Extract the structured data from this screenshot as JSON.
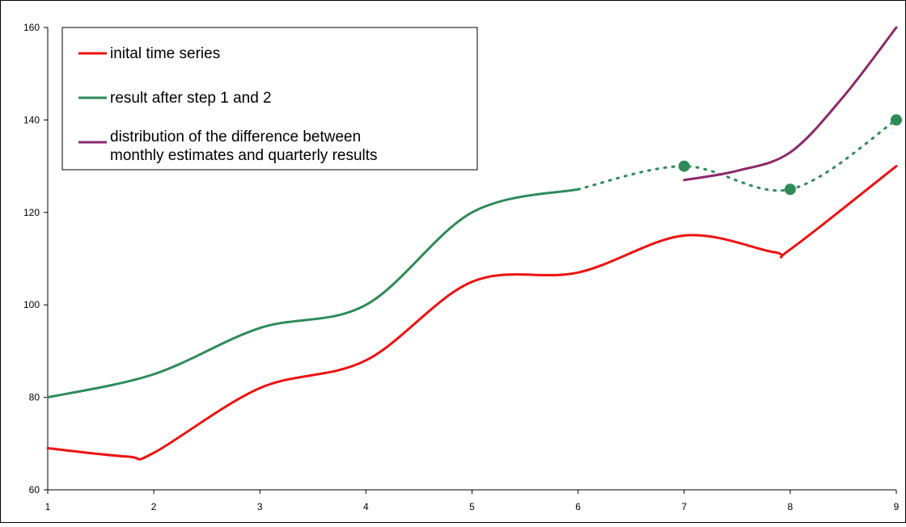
{
  "chart_data": {
    "type": "line",
    "title": "",
    "xlabel": "",
    "ylabel": "",
    "x": [
      1,
      2,
      3,
      4,
      5,
      6,
      7,
      8,
      9
    ],
    "xlim": [
      1,
      9
    ],
    "ylim": [
      60,
      160
    ],
    "x_ticks": [
      "1",
      "2",
      "3",
      "4",
      "5",
      "6",
      "7",
      "8",
      "9"
    ],
    "y_ticks": [
      "60",
      "80",
      "100",
      "120",
      "140",
      "160"
    ],
    "grid": false,
    "legend_position": "top-left",
    "series": [
      {
        "name": "inital time series",
        "color": "#ee1111",
        "style": "solid",
        "x": [
          1,
          1.75,
          2,
          3,
          4,
          5,
          6,
          7,
          7.85,
          8,
          9
        ],
        "values": [
          69,
          67.2,
          68,
          82,
          88,
          105,
          107,
          115,
          111.4,
          112,
          130
        ]
      },
      {
        "name": "result after step 1 and 2",
        "color": "#2e8b57",
        "style": "solid",
        "x": [
          1,
          2,
          3,
          4,
          5,
          6
        ],
        "values": [
          80,
          85,
          95,
          100,
          120,
          125
        ]
      },
      {
        "name": "",
        "color": "#2e8b57",
        "style": "dotted",
        "markers": true,
        "x": [
          6,
          7,
          8,
          9
        ],
        "values": [
          125,
          130,
          125,
          140
        ]
      },
      {
        "name": "distribution of the difference between\nmonthly estimates and quarterly results",
        "color": "#8b2a6b",
        "style": "solid",
        "x": [
          7,
          7.5,
          8,
          8.5,
          9
        ],
        "values": [
          127,
          129,
          133,
          145,
          160
        ]
      }
    ],
    "legend": [
      {
        "lines": [
          "inital time series"
        ],
        "color": "#ee1111"
      },
      {
        "lines": [
          "result after step 1 and 2"
        ],
        "color": "#2e8b57"
      },
      {
        "lines": [
          "distribution of the difference between",
          "monthly estimates and quarterly results"
        ],
        "color": "#8b2a6b"
      }
    ]
  }
}
